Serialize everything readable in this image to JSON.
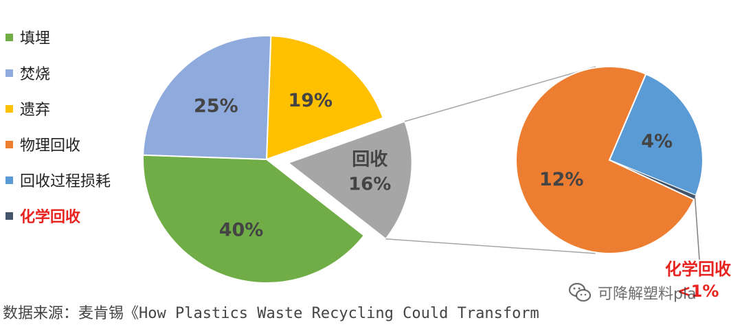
{
  "legend": [
    {
      "label": "填埋",
      "color": "#70ad47"
    },
    {
      "label": "焚烧",
      "color": "#8faadc"
    },
    {
      "label": "遗弃",
      "color": "#ffc000"
    },
    {
      "label": "物理回收",
      "color": "#ed7d31"
    },
    {
      "label": "回收过程损耗",
      "color": "#5b9bd5"
    },
    {
      "label": "化学回收",
      "color": "#44546a",
      "emphasis": true
    }
  ],
  "chart_data": {
    "type": "pie",
    "main_pie": {
      "slices": [
        {
          "name": "遗弃",
          "value": 19,
          "label": "19%",
          "color": "#ffc000"
        },
        {
          "name": "回收",
          "value": 16,
          "label": "16%",
          "color": "#a6a6a6",
          "exploded": true
        },
        {
          "name": "填埋",
          "value": 40,
          "label": "40%",
          "color": "#70ad47"
        },
        {
          "name": "焚烧",
          "value": 25,
          "label": "25%",
          "color": "#8faadc"
        }
      ],
      "recycle_label": "回收"
    },
    "sub_pie": {
      "parent": "回收",
      "slices": [
        {
          "name": "回收过程损耗",
          "value": 4,
          "label": "4%",
          "color": "#5b9bd5"
        },
        {
          "name": "化学回收",
          "value": 0.12,
          "color": "#44546a"
        },
        {
          "name": "物理回收",
          "value": 12,
          "label": "12%",
          "color": "#ed7d31"
        }
      ],
      "callout": {
        "name": "化学回收",
        "label": "<1%"
      }
    }
  },
  "source": {
    "prefix": "数据来源：麦肯锡《",
    "title": "How Plastics Waste Recycling Could Transform"
  },
  "watermark": {
    "text": "可降解塑料pla"
  }
}
